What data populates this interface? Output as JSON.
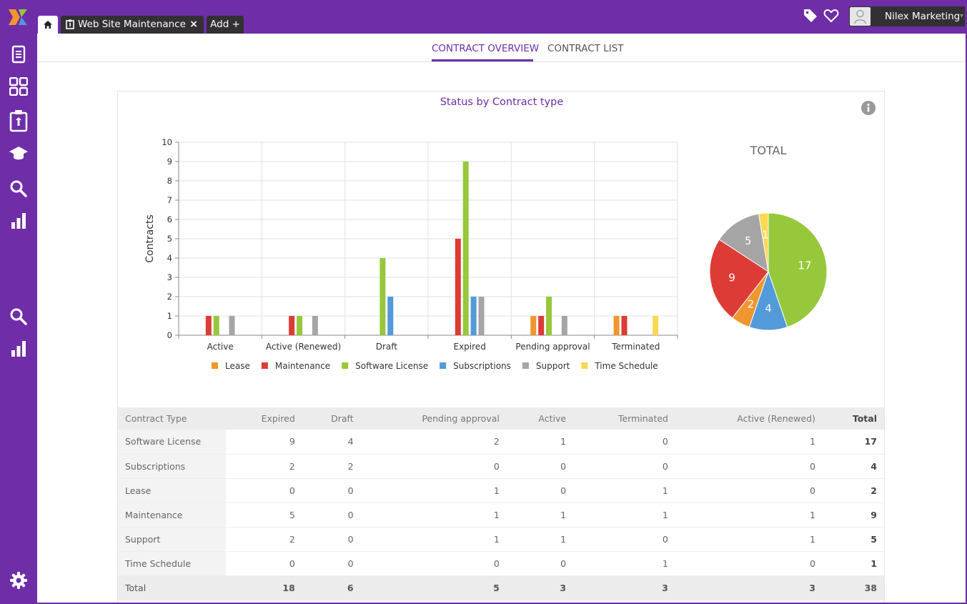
{
  "header": {
    "tabs": [
      {
        "label": "",
        "icon": "home-icon"
      },
      {
        "label": "Web Site Maintenance",
        "icon": "clipboard-icon",
        "close": "×"
      },
      {
        "label": "Add +",
        "icon": ""
      }
    ],
    "user_name": "Nilex Marketing",
    "icons": [
      "tag-icon",
      "heart-icon",
      "avatar"
    ]
  },
  "sidebar": {
    "items": [
      "document-icon",
      "dashboard-icon",
      "clipboard-icon",
      "graduation-cap-icon",
      "search-icon",
      "bar-chart-icon",
      "search-icon",
      "bar-chart-icon",
      "gear-icon"
    ]
  },
  "subnav": {
    "overview": "CONTRACT OVERVIEW",
    "list": "CONTRACT LIST"
  },
  "colors": {
    "brand": "#6f2da8",
    "Lease": "#f0962e",
    "Maintenance": "#dd3b35",
    "Software License": "#97c83c",
    "Subscriptions": "#529ad9",
    "Support": "#a5a5a5",
    "Time Schedule": "#f9d952"
  },
  "chart_data": [
    {
      "type": "bar",
      "title": "Status by Contract type",
      "ylabel": "Contracts",
      "ylim": [
        0,
        10
      ],
      "yticks": [
        0,
        1,
        2,
        3,
        4,
        5,
        6,
        7,
        8,
        9,
        10
      ],
      "grid": true,
      "legend": "bottom",
      "categories": [
        "Active",
        "Active (Renewed)",
        "Draft",
        "Expired",
        "Pending approval",
        "Terminated"
      ],
      "series": [
        {
          "name": "Lease",
          "values": [
            0,
            0,
            0,
            0,
            1,
            1
          ]
        },
        {
          "name": "Maintenance",
          "values": [
            1,
            1,
            0,
            5,
            1,
            1
          ]
        },
        {
          "name": "Software License",
          "values": [
            1,
            1,
            4,
            9,
            2,
            0
          ]
        },
        {
          "name": "Subscriptions",
          "values": [
            0,
            0,
            2,
            2,
            0,
            0
          ]
        },
        {
          "name": "Support",
          "values": [
            1,
            1,
            0,
            2,
            1,
            0
          ]
        },
        {
          "name": "Time Schedule",
          "values": [
            0,
            0,
            0,
            0,
            0,
            1
          ]
        }
      ]
    },
    {
      "type": "pie",
      "title": "TOTAL",
      "slices": [
        {
          "name": "Software License",
          "value": 17
        },
        {
          "name": "Subscriptions",
          "value": 4
        },
        {
          "name": "Lease",
          "value": 2
        },
        {
          "name": "Maintenance",
          "value": 9
        },
        {
          "name": "Support",
          "value": 5
        },
        {
          "name": "Time Schedule",
          "value": 1
        }
      ]
    },
    {
      "type": "table",
      "columns": [
        "Contract Type",
        "Expired",
        "Draft",
        "Pending approval",
        "Active",
        "Terminated",
        "Active (Renewed)",
        "Total"
      ],
      "rows": [
        [
          "Software License",
          "9",
          "4",
          "2",
          "1",
          "0",
          "1",
          "17"
        ],
        [
          "Subscriptions",
          "2",
          "2",
          "0",
          "0",
          "0",
          "0",
          "4"
        ],
        [
          "Lease",
          "0",
          "0",
          "1",
          "0",
          "1",
          "0",
          "2"
        ],
        [
          "Maintenance",
          "5",
          "0",
          "1",
          "1",
          "1",
          "1",
          "9"
        ],
        [
          "Support",
          "2",
          "0",
          "1",
          "1",
          "0",
          "1",
          "5"
        ],
        [
          "Time Schedule",
          "0",
          "0",
          "0",
          "0",
          "1",
          "0",
          "1"
        ]
      ],
      "total_row": [
        "Total",
        "18",
        "6",
        "5",
        "3",
        "3",
        "3",
        "38"
      ]
    }
  ]
}
